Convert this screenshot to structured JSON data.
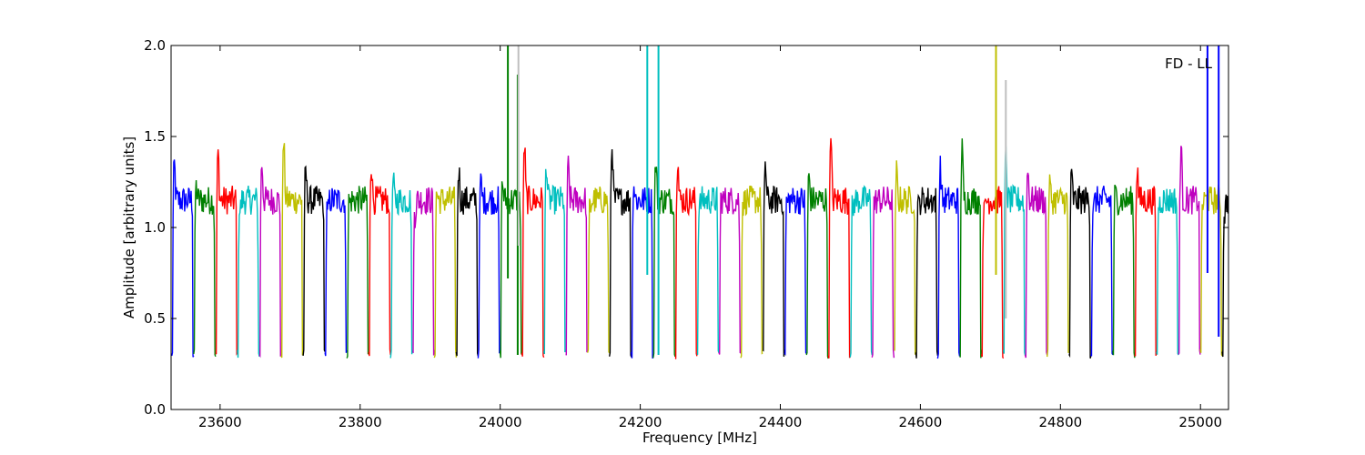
{
  "chart_data": {
    "type": "line",
    "title": "",
    "xlabel": "Frequency [MHz]",
    "ylabel": "Amplitude [arbitrary units]",
    "xlim": [
      23530,
      25040
    ],
    "ylim": [
      0.0,
      2.0
    ],
    "xticks": [
      23600,
      23800,
      24000,
      24200,
      24400,
      24600,
      24800,
      25000
    ],
    "yticks": [
      0.0,
      0.5,
      1.0,
      1.5,
      2.0
    ],
    "ytick_labels": [
      "0.0",
      "0.5",
      "1.0",
      "1.5",
      "2.0"
    ],
    "grid": false,
    "legend": "none",
    "annotation": "FD - LL",
    "colors": [
      "#0000ff",
      "#008000",
      "#ff0000",
      "#00bfbf",
      "#bf00bf",
      "#bfbf00",
      "#000000"
    ],
    "band_width_mhz": 31.25,
    "band_start_mhz": 23531,
    "band_nominal_level": 1.15,
    "band_edge_level": 0.28,
    "spikes": [
      {
        "x": 24011,
        "y": 2.0,
        "low": 0.72,
        "color": "#008000"
      },
      {
        "x": 24025,
        "y": 1.84,
        "low": 0.3,
        "color": "#008000"
      },
      {
        "x": 24026,
        "y": 2.0,
        "low": 0.9,
        "color": "#bfbfbf"
      },
      {
        "x": 24210,
        "y": 2.0,
        "low": 0.74,
        "color": "#00bfbf"
      },
      {
        "x": 24226,
        "y": 2.0,
        "low": 0.3,
        "color": "#00bfbf"
      },
      {
        "x": 24708,
        "y": 2.0,
        "low": 0.74,
        "color": "#bfbf00"
      },
      {
        "x": 24722,
        "y": 1.81,
        "low": 0.5,
        "color": "#bfbfbf"
      },
      {
        "x": 25010,
        "y": 2.0,
        "low": 0.75,
        "color": "#0000ff"
      },
      {
        "x": 25026,
        "y": 2.0,
        "low": 0.4,
        "color": "#0000ff"
      }
    ]
  }
}
